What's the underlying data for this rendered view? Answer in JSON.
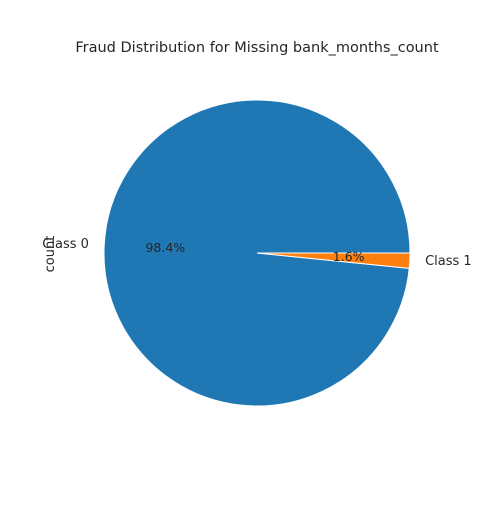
{
  "chart_data": {
    "type": "pie",
    "title": "Fraud Distribution for Missing bank_months_count",
    "ylabel": "count",
    "categories": [
      "Class 0",
      "Class 1"
    ],
    "values": [
      98.4,
      1.6
    ],
    "percent_labels": [
      "98.4%",
      "1.6%"
    ],
    "colors": [
      "#1f77b4",
      "#ff7f0e"
    ],
    "legend": "none"
  }
}
